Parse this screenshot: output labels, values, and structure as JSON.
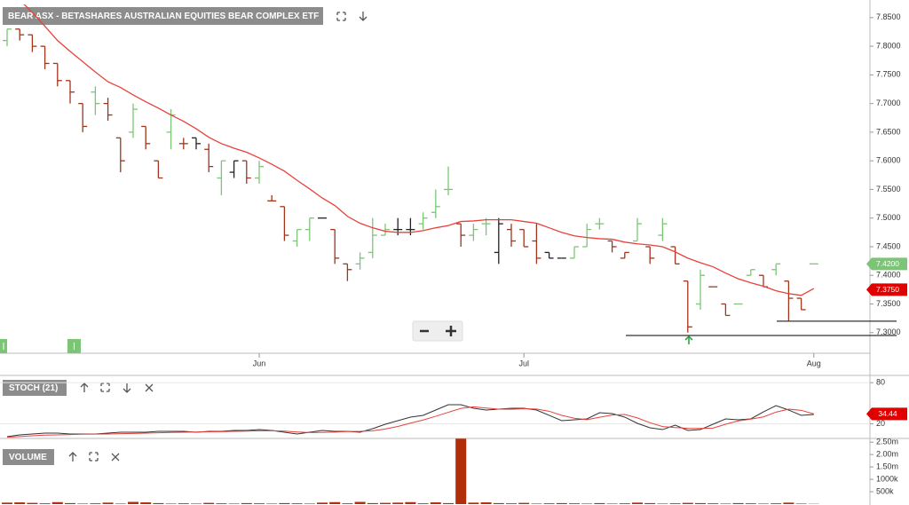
{
  "chart_data": [
    {
      "type": "ohlc",
      "title": "BEAR ASX - BETASHARES AUSTRALIAN EQUITIES BEAR COMPLEX ETF",
      "categories": [
        null,
        null,
        null,
        null,
        null,
        null,
        null,
        null,
        null,
        null,
        null,
        null,
        null,
        null,
        null,
        null,
        null,
        null,
        null,
        null,
        "Jun",
        null,
        null,
        null,
        null,
        null,
        null,
        null,
        null,
        null,
        null,
        null,
        null,
        null,
        null,
        null,
        null,
        null,
        null,
        null,
        null,
        "Jul",
        null,
        null,
        null,
        null,
        null,
        null,
        null,
        null,
        null,
        null,
        null,
        null,
        null,
        null,
        null,
        null,
        null,
        null,
        null,
        null,
        null,
        null,
        "Aug"
      ],
      "open": [
        7.81,
        7.83,
        7.82,
        7.8,
        7.77,
        7.74,
        7.7,
        7.72,
        7.7,
        7.64,
        7.65,
        7.66,
        7.6,
        7.65,
        7.63,
        7.64,
        7.62,
        7.57,
        7.58,
        7.6,
        7.57,
        7.53,
        7.52,
        7.46,
        7.48,
        7.5,
        7.48,
        7.42,
        7.42,
        7.44,
        7.47,
        7.48,
        7.48,
        7.49,
        7.51,
        7.55,
        7.49,
        7.47,
        7.49,
        7.44,
        7.48,
        7.48,
        7.46,
        7.44,
        7.43,
        7.43,
        7.45,
        7.49,
        7.46,
        7.43,
        7.46,
        7.45,
        7.47,
        7.45,
        7.39,
        7.35,
        7.38,
        7.35,
        7.35,
        7.4,
        7.4,
        7.41,
        7.39,
        7.36,
        7.42
      ],
      "high": [
        7.83,
        7.83,
        7.82,
        7.8,
        7.77,
        7.74,
        7.7,
        7.73,
        7.71,
        7.64,
        7.7,
        7.66,
        7.6,
        7.69,
        7.64,
        7.64,
        7.63,
        7.6,
        7.6,
        7.6,
        7.6,
        7.54,
        7.52,
        7.48,
        7.5,
        7.5,
        7.48,
        7.42,
        7.44,
        7.5,
        7.49,
        7.5,
        7.5,
        7.51,
        7.55,
        7.59,
        7.49,
        7.49,
        7.5,
        7.5,
        7.49,
        7.48,
        7.49,
        7.44,
        7.43,
        7.45,
        7.49,
        7.5,
        7.46,
        7.44,
        7.5,
        7.45,
        7.5,
        7.45,
        7.39,
        7.41,
        7.38,
        7.35,
        7.35,
        7.41,
        7.4,
        7.42,
        7.39,
        7.36,
        7.42
      ],
      "low": [
        7.8,
        7.81,
        7.79,
        7.76,
        7.73,
        7.7,
        7.65,
        7.68,
        7.67,
        7.58,
        7.64,
        7.62,
        7.57,
        7.62,
        7.62,
        7.62,
        7.58,
        7.54,
        7.57,
        7.56,
        7.56,
        7.53,
        7.46,
        7.45,
        7.46,
        7.5,
        7.42,
        7.39,
        7.41,
        7.43,
        7.47,
        7.47,
        7.47,
        7.48,
        7.5,
        7.54,
        7.45,
        7.46,
        7.47,
        7.42,
        7.45,
        7.45,
        7.42,
        7.43,
        7.43,
        7.43,
        7.45,
        7.48,
        7.44,
        7.43,
        7.46,
        7.42,
        7.46,
        7.42,
        7.3,
        7.34,
        7.38,
        7.33,
        7.35,
        7.4,
        7.38,
        7.4,
        7.32,
        7.34,
        7.42
      ],
      "close": [
        7.83,
        7.82,
        7.8,
        7.77,
        7.74,
        7.72,
        7.66,
        7.7,
        7.68,
        7.6,
        7.69,
        7.63,
        7.57,
        7.68,
        7.63,
        7.63,
        7.59,
        7.6,
        7.6,
        7.57,
        7.59,
        7.53,
        7.47,
        7.48,
        7.5,
        7.5,
        7.43,
        7.41,
        7.43,
        7.47,
        7.48,
        7.48,
        7.48,
        7.5,
        7.52,
        7.55,
        7.47,
        7.48,
        7.49,
        7.49,
        7.46,
        7.45,
        7.43,
        7.43,
        7.43,
        7.45,
        7.48,
        7.49,
        7.45,
        7.44,
        7.49,
        7.43,
        7.49,
        7.42,
        7.31,
        7.4,
        7.38,
        7.33,
        7.35,
        7.41,
        7.38,
        7.42,
        7.36,
        7.34,
        7.42
      ],
      "colors": {
        "up": "#7cc576",
        "down": "#a0341c",
        "flat": "#222222"
      },
      "overlay": {
        "color": "#e8413a",
        "values": [
          7.904,
          7.881,
          7.859,
          7.835,
          7.81,
          7.791,
          7.773,
          7.755,
          7.738,
          7.728,
          7.715,
          7.703,
          7.692,
          7.68,
          7.669,
          7.656,
          7.641,
          7.63,
          7.622,
          7.615,
          7.605,
          7.594,
          7.582,
          7.566,
          7.551,
          7.535,
          7.522,
          7.503,
          7.491,
          7.483,
          7.477,
          7.475,
          7.475,
          7.478,
          7.483,
          7.487,
          7.494,
          7.495,
          7.497,
          7.497,
          7.497,
          7.494,
          7.491,
          7.483,
          7.475,
          7.469,
          7.466,
          7.464,
          7.463,
          7.458,
          7.455,
          7.453,
          7.45,
          7.441,
          7.43,
          7.422,
          7.415,
          7.404,
          7.394,
          7.387,
          7.381,
          7.373,
          7.368,
          7.365,
          7.377
        ]
      },
      "price_tags": [
        {
          "value": 7.42,
          "label": "7.4200",
          "color": "#7cc576"
        },
        {
          "value": 7.375,
          "label": "7.3750",
          "color": "#e00000"
        }
      ],
      "levels": [
        7.32,
        7.295
      ],
      "ylim": [
        7.264,
        7.873
      ],
      "yticks": [
        {
          "value": 7.3,
          "label": "7.3000"
        },
        {
          "value": 7.35,
          "label": "7.3500"
        },
        {
          "value": 7.4,
          "label": "7.4000"
        },
        {
          "value": 7.45,
          "label": "7.4500"
        },
        {
          "value": 7.5,
          "label": "7.5000"
        },
        {
          "value": 7.55,
          "label": "7.5500"
        },
        {
          "value": 7.6,
          "label": "7.6000"
        },
        {
          "value": 7.65,
          "label": "7.6500"
        },
        {
          "value": 7.7,
          "label": "7.7000"
        },
        {
          "value": 7.75,
          "label": "7.7500"
        },
        {
          "value": 7.8,
          "label": "7.8000"
        },
        {
          "value": 7.85,
          "label": "7.8500"
        }
      ]
    },
    {
      "type": "line",
      "title": "STOCH (21)",
      "series": [
        {
          "color": "#333333",
          "values": [
            1.3,
            3.9,
            5.2,
            6.5,
            6.5,
            5.2,
            5.2,
            5.2,
            6.5,
            7.8,
            7.8,
            7.8,
            9.1,
            9.1,
            9.1,
            7.8,
            9.1,
            9.1,
            10.4,
            10.4,
            11.6,
            10.4,
            7.8,
            5.2,
            7.8,
            10.4,
            9.1,
            9.1,
            7.8,
            12.9,
            19.4,
            24.6,
            29.8,
            32.4,
            40.1,
            47.9,
            47.9,
            42.7,
            40.1,
            41.4,
            42.7,
            42.7,
            40.1,
            32.4,
            24.6,
            25.9,
            27.2,
            36.2,
            34.9,
            29.8,
            20.7,
            14.2,
            11.6,
            18.1,
            10.4,
            11.6,
            19.4,
            27.2,
            25.9,
            27.2,
            37.5,
            46.6,
            40.1,
            32.4,
            33.6
          ]
        },
        {
          "color": "#e8413a",
          "values": [
            0.5,
            1.5,
            2.6,
            3.5,
            3.9,
            4.4,
            4.8,
            5.0,
            5.2,
            5.6,
            6.0,
            6.5,
            7.0,
            7.4,
            7.8,
            8.1,
            8.4,
            8.6,
            9.0,
            9.4,
            9.9,
            10.0,
            9.4,
            8.1,
            7.2,
            7.4,
            8.0,
            8.8,
            9.0,
            9.8,
            12.4,
            16.2,
            21.0,
            25.6,
            31.0,
            36.8,
            42.5,
            44.8,
            43.0,
            41.4,
            41.2,
            42.0,
            41.6,
            38.4,
            32.4,
            28.2,
            26.0,
            29.6,
            32.8,
            33.6,
            28.6,
            21.6,
            16.0,
            14.6,
            13.4,
            13.2,
            13.8,
            19.4,
            24.2,
            26.8,
            30.1,
            37.1,
            41.4,
            39.7,
            34.44
          ]
        }
      ],
      "tag_color": "#e00000",
      "ylim": [
        0,
        88
      ],
      "yticks": [
        20,
        80
      ]
    },
    {
      "type": "bar",
      "title": "VOLUME",
      "color": "#b22d0a",
      "values": [
        60000,
        70000,
        50000,
        30000,
        80000,
        40000,
        20000,
        30000,
        60000,
        20000,
        90000,
        70000,
        40000,
        20000,
        30000,
        20000,
        50000,
        30000,
        20000,
        40000,
        30000,
        20000,
        40000,
        30000,
        20000,
        60000,
        80000,
        30000,
        90000,
        40000,
        50000,
        60000,
        80000,
        30000,
        70000,
        40000,
        2640000,
        60000,
        70000,
        40000,
        30000,
        50000,
        20000,
        30000,
        40000,
        30000,
        20000,
        40000,
        20000,
        30000,
        60000,
        40000,
        20000,
        30000,
        50000,
        40000,
        30000,
        20000,
        40000,
        30000,
        20000,
        30000,
        60000,
        20000,
        10000
      ],
      "ylim": [
        0,
        2700000
      ],
      "yticks": [
        {
          "value": 500000,
          "label": "500k"
        },
        {
          "value": 1000000,
          "label": "1000k"
        },
        {
          "value": 1500000,
          "label": "1.50m"
        },
        {
          "value": 2000000,
          "label": "2.00m"
        },
        {
          "value": 2500000,
          "label": "2.50m"
        }
      ]
    }
  ]
}
